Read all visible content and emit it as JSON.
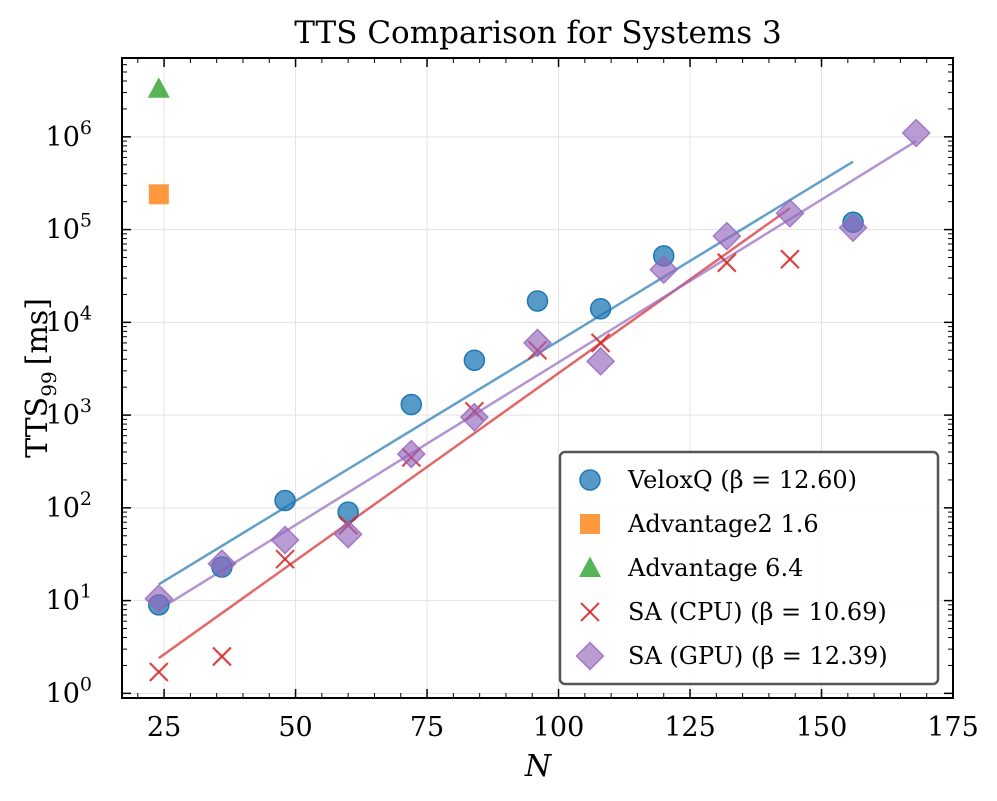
{
  "chart_data": {
    "type": "scatter",
    "title": "TTS Comparison for Systems 3",
    "xlabel": "N",
    "ylabel_main": "TTS",
    "ylabel_subscript": "99",
    "ylabel_unit": "[ms]",
    "xlim": [
      17,
      175
    ],
    "ylim_log10": [
      -0.05,
      6.85
    ],
    "y_scale": "log",
    "grid": true,
    "legend_position": "lower-right",
    "x_ticks": [
      {
        "value": 25,
        "label": "25"
      },
      {
        "value": 50,
        "label": "50"
      },
      {
        "value": 75,
        "label": "75"
      },
      {
        "value": 100,
        "label": "100"
      },
      {
        "value": 125,
        "label": "125"
      },
      {
        "value": 150,
        "label": "150"
      },
      {
        "value": 175,
        "label": "175"
      }
    ],
    "y_ticks": [
      {
        "exp": 0,
        "base": "10",
        "sup": "0"
      },
      {
        "exp": 1,
        "base": "10",
        "sup": "1"
      },
      {
        "exp": 2,
        "base": "10",
        "sup": "2"
      },
      {
        "exp": 3,
        "base": "10",
        "sup": "3"
      },
      {
        "exp": 4,
        "base": "10",
        "sup": "4"
      },
      {
        "exp": 5,
        "base": "10",
        "sup": "5"
      },
      {
        "exp": 6,
        "base": "10",
        "sup": "6"
      }
    ],
    "series": [
      {
        "name": "VeloxQ",
        "legend_label": "VeloxQ (β = 12.60)",
        "marker": "circle",
        "color": "#1f77b4",
        "x": [
          24,
          36,
          48,
          60,
          72,
          84,
          96,
          108,
          120,
          156
        ],
        "y": [
          9,
          23,
          120,
          90,
          1300,
          3900,
          17000,
          14000,
          52000,
          120000
        ],
        "fit": {
          "x": [
            24,
            156
          ],
          "y": [
            15,
            540000
          ]
        }
      },
      {
        "name": "Advantage2 1.6",
        "legend_label": "Advantage2 1.6",
        "marker": "square",
        "color": "#ff7f0e",
        "x": [
          24
        ],
        "y": [
          240000
        ]
      },
      {
        "name": "Advantage 6.4",
        "legend_label": "Advantage 6.4",
        "marker": "triangle",
        "color": "#2ca02c",
        "x": [
          24
        ],
        "y": [
          3300000
        ]
      },
      {
        "name": "SA (CPU)",
        "legend_label": "SA (CPU) (β = 10.69)",
        "marker": "x",
        "color": "#d62728",
        "x": [
          24,
          36,
          48,
          60,
          72,
          84,
          96,
          108,
          132,
          144
        ],
        "y": [
          1.7,
          2.5,
          28,
          65,
          350,
          1100,
          5000,
          6000,
          44000,
          48000
        ],
        "fit": {
          "x": [
            24,
            144
          ],
          "y": [
            2.4,
            170000
          ]
        }
      },
      {
        "name": "SA (GPU)",
        "legend_label": "SA (GPU) (β = 12.39)",
        "marker": "diamond",
        "color": "#9467bd",
        "x": [
          24,
          36,
          48,
          60,
          72,
          84,
          96,
          108,
          120,
          132,
          144,
          156,
          168
        ],
        "y": [
          10.5,
          25,
          45,
          52,
          380,
          950,
          6000,
          3800,
          37000,
          85000,
          150000,
          105000,
          1100000
        ],
        "fit": {
          "x": [
            24,
            168
          ],
          "y": [
            8,
            900000
          ]
        }
      }
    ]
  }
}
